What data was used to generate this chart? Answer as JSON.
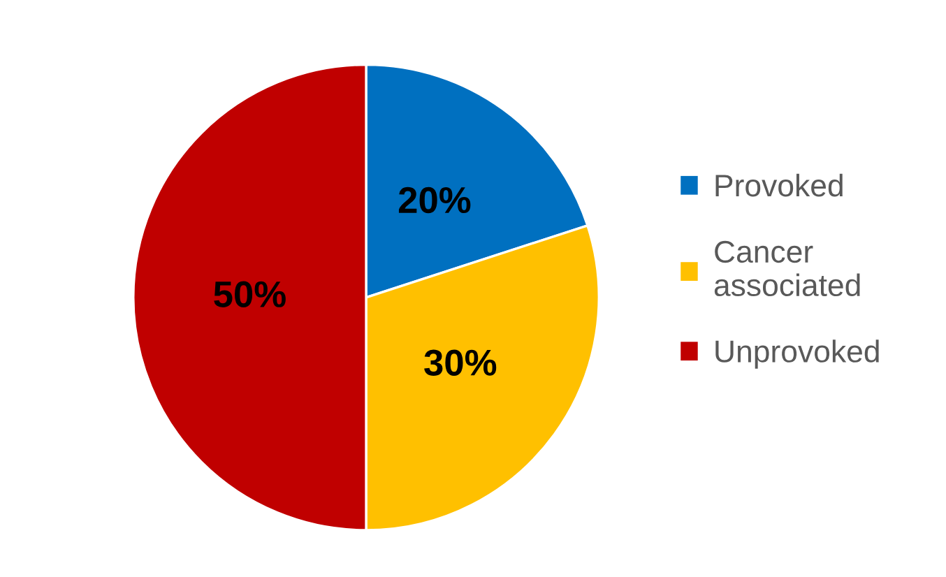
{
  "chart_data": {
    "type": "pie",
    "categories": [
      "Provoked",
      "Cancer\nassociated",
      "Unprovoked"
    ],
    "values": [
      20,
      30,
      50
    ],
    "colors": [
      "#0070c0",
      "#ffc000",
      "#c00000"
    ],
    "value_labels": [
      "20%",
      "30%",
      "50%"
    ],
    "legend": "right"
  }
}
